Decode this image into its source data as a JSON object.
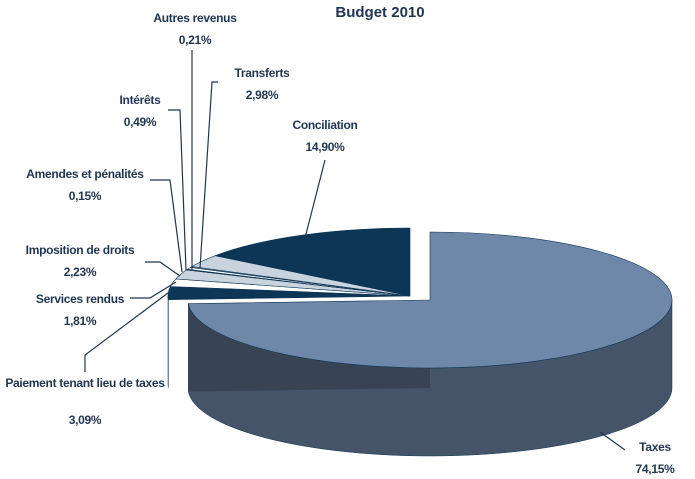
{
  "chart_data": {
    "type": "pie3d",
    "title": "Budget 2010",
    "categories": [
      "Taxes",
      "Paiement tenant lieu de taxes",
      "Services rendus",
      "Imposition de droits",
      "Amendes et pénalités",
      "Intérêts",
      "Autres revenus",
      "Transferts",
      "Conciliation"
    ],
    "values": [
      74.15,
      3.09,
      1.81,
      2.23,
      0.15,
      0.49,
      0.21,
      2.98,
      14.9
    ],
    "value_labels": [
      "74,15%",
      "3,09%",
      "1,81%",
      "2,23%",
      "0,15%",
      "0,49%",
      "0,21%",
      "2,98%",
      "14,90%"
    ],
    "colors": [
      "#6f87a8",
      "#0d3556",
      "#ffffff",
      "#c9d3de",
      "#0d3556",
      "#ffffff",
      "#9aabbf",
      "#c9d3de",
      "#0d3556"
    ]
  }
}
